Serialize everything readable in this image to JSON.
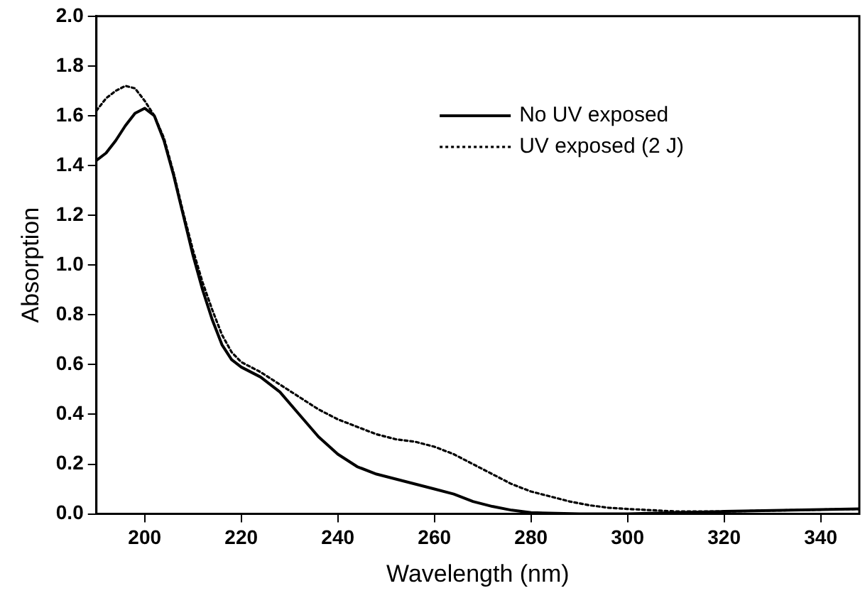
{
  "chart_data": {
    "type": "line",
    "xlabel": "Wavelength (nm)",
    "ylabel": "Absorption",
    "xlim": [
      190,
      348
    ],
    "xticks": [
      200,
      220,
      240,
      260,
      280,
      300,
      320,
      340
    ],
    "ylim": [
      0,
      2.0
    ],
    "yticks": [
      {
        "value": 0,
        "label": "0.0"
      },
      {
        "value": 0.2,
        "label": "0.2"
      },
      {
        "value": 0.4,
        "label": "0.4"
      },
      {
        "value": 0.6,
        "label": "0.6"
      },
      {
        "value": 0.8,
        "label": "0.8"
      },
      {
        "value": 1.0,
        "label": "1.0"
      },
      {
        "value": 1.2,
        "label": "1.2"
      },
      {
        "value": 1.4,
        "label": "1.4"
      },
      {
        "value": 1.6,
        "label": "1.6"
      },
      {
        "value": 1.8,
        "label": "1.8"
      },
      {
        "value": 2.0,
        "label": "2.0"
      }
    ],
    "legend": "top",
    "marker": "none",
    "grid": false,
    "series": [
      {
        "name": "No UV exposed",
        "color": "#000000",
        "line_style": "solid",
        "x": [
          190,
          192,
          194,
          196,
          198,
          200,
          202,
          204,
          206,
          208,
          210,
          212,
          214,
          216,
          218,
          220,
          224,
          228,
          232,
          236,
          240,
          244,
          248,
          252,
          256,
          260,
          264,
          268,
          272,
          276,
          280,
          290,
          300,
          320,
          348
        ],
        "values": [
          1.42,
          1.45,
          1.5,
          1.56,
          1.61,
          1.63,
          1.6,
          1.5,
          1.36,
          1.2,
          1.04,
          0.9,
          0.78,
          0.68,
          0.62,
          0.59,
          0.55,
          0.49,
          0.4,
          0.31,
          0.24,
          0.19,
          0.16,
          0.14,
          0.12,
          0.1,
          0.08,
          0.05,
          0.03,
          0.015,
          0.005,
          0.0,
          0.0,
          0.01,
          0.02
        ]
      },
      {
        "name": "UV exposed (2 J)",
        "color": "#000000",
        "line_style": "dotted",
        "x": [
          190,
          192,
          194,
          196,
          198,
          200,
          202,
          204,
          206,
          208,
          210,
          212,
          214,
          216,
          218,
          220,
          224,
          228,
          232,
          236,
          240,
          244,
          248,
          252,
          256,
          260,
          264,
          268,
          272,
          276,
          280,
          284,
          288,
          292,
          296,
          300,
          310,
          320,
          348
        ],
        "values": [
          1.62,
          1.67,
          1.7,
          1.72,
          1.71,
          1.66,
          1.6,
          1.51,
          1.37,
          1.21,
          1.06,
          0.93,
          0.82,
          0.72,
          0.65,
          0.61,
          0.57,
          0.52,
          0.47,
          0.42,
          0.38,
          0.35,
          0.32,
          0.3,
          0.29,
          0.27,
          0.24,
          0.2,
          0.16,
          0.12,
          0.09,
          0.07,
          0.05,
          0.035,
          0.025,
          0.02,
          0.01,
          0.01,
          0.02
        ]
      }
    ]
  }
}
